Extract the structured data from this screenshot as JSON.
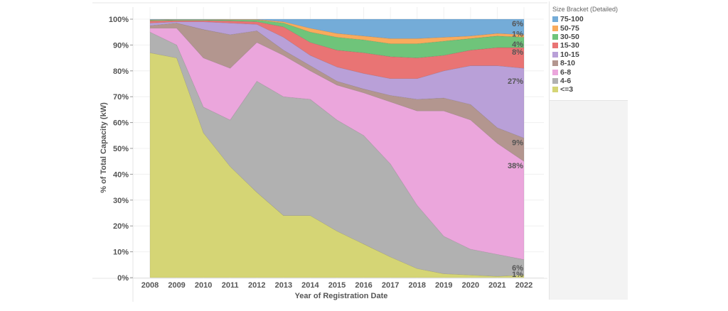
{
  "chart_data": {
    "type": "area",
    "stacked": "percent",
    "title": "",
    "xlabel": "Year of Registration Date",
    "ylabel": "% of Total Capacity (kW)",
    "ylim": [
      0,
      100
    ],
    "y_ticks": [
      "0%",
      "10%",
      "20%",
      "30%",
      "40%",
      "50%",
      "60%",
      "70%",
      "80%",
      "90%",
      "100%"
    ],
    "x": [
      "2008",
      "2009",
      "2010",
      "2011",
      "2012",
      "2013",
      "2014",
      "2015",
      "2016",
      "2017",
      "2018",
      "2019",
      "2020",
      "2021",
      "2022"
    ],
    "legend_title": "Size Bracket (Detailed)",
    "legend_position": "right",
    "series": [
      {
        "name": "<=3",
        "color": "#d5d575",
        "values": [
          87,
          85,
          56,
          43,
          33,
          24,
          24,
          18,
          13,
          8,
          3.5,
          1.5,
          1,
          0.5,
          1
        ],
        "end_label": "1%"
      },
      {
        "name": "4-6",
        "color": "#b1b1b1",
        "values": [
          8,
          5,
          10,
          18,
          43,
          46,
          45,
          43,
          42,
          36,
          24.5,
          14.5,
          10,
          8.5,
          6
        ],
        "end_label": "6%"
      },
      {
        "name": "6-8",
        "color": "#eba6dc",
        "values": [
          1.5,
          6.5,
          19,
          20,
          15,
          16,
          11,
          13.5,
          16.5,
          24,
          36.5,
          48.5,
          50,
          43,
          38
        ],
        "end_label": "38%"
      },
      {
        "name": "8-10",
        "color": "#b3968f",
        "values": [
          1,
          2,
          11,
          13,
          4.5,
          2,
          2,
          1.5,
          1.5,
          2.5,
          4.5,
          5,
          6,
          6,
          9
        ],
        "end_label": "9%"
      },
      {
        "name": "10-15",
        "color": "#b9a0d8",
        "values": [
          1,
          0.5,
          3,
          4.5,
          2.5,
          5,
          4,
          5.5,
          6,
          6.5,
          8,
          10.5,
          15,
          24,
          27
        ],
        "end_label": "27%"
      },
      {
        "name": "15-30",
        "color": "#e97474",
        "values": [
          0.8,
          0.5,
          0.5,
          0.8,
          1,
          4,
          5,
          6.5,
          8,
          8.5,
          8,
          6,
          6,
          7,
          8
        ],
        "end_label": "8%"
      },
      {
        "name": "30-50",
        "color": "#6fc47a",
        "values": [
          0.3,
          0.3,
          0.3,
          0.4,
          0.7,
          1.5,
          4,
          5,
          5,
          5,
          5.5,
          5.5,
          4.5,
          4.5,
          4
        ],
        "end_label": "4%"
      },
      {
        "name": "50-75",
        "color": "#f9ab5c",
        "values": [
          0.2,
          0.1,
          0.1,
          0.2,
          0.2,
          0.5,
          1.5,
          1.5,
          1.5,
          2,
          2,
          1.5,
          1,
          1,
          1
        ],
        "end_label": "1%"
      },
      {
        "name": "75-100",
        "color": "#74acd8",
        "values": [
          0.2,
          0.1,
          0.1,
          0.1,
          0.1,
          1,
          3.5,
          5.5,
          6.5,
          7.5,
          7.5,
          7,
          6.5,
          5.5,
          6
        ],
        "end_label": "6%"
      }
    ]
  }
}
